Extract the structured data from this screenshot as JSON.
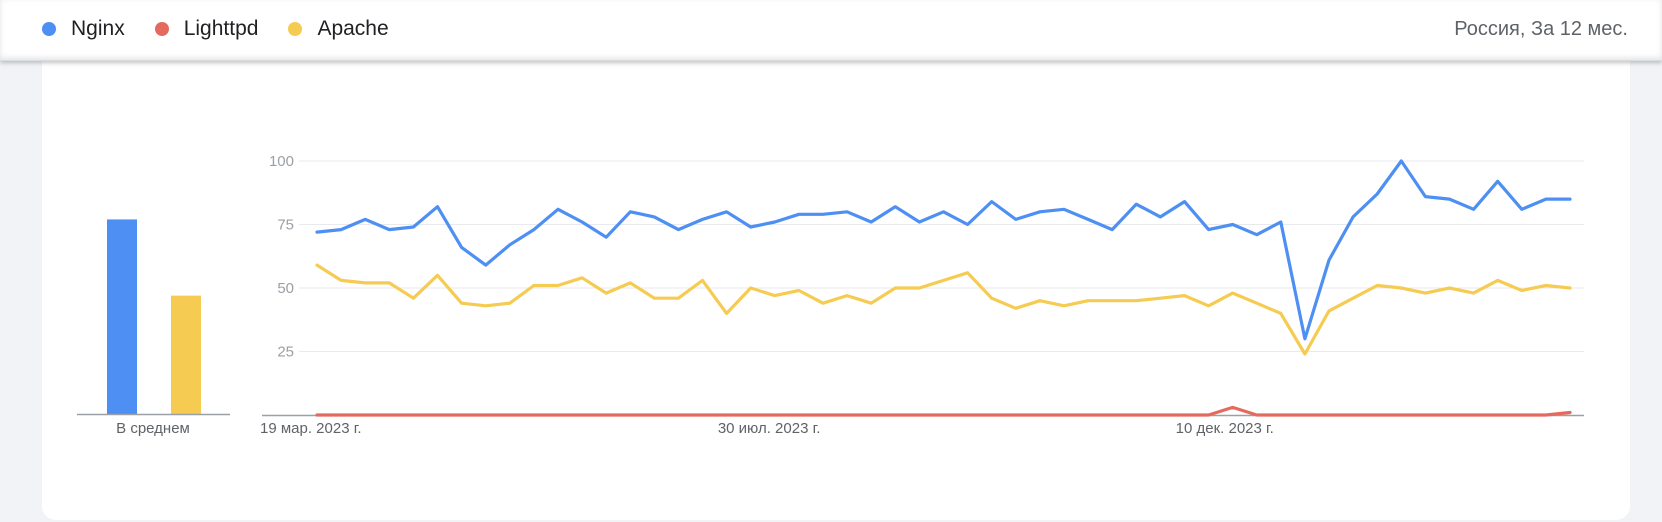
{
  "legend": {
    "items": [
      {
        "label": "Nginx",
        "color": "#4e8ff3"
      },
      {
        "label": "Lighttpd",
        "color": "#e56a5e"
      },
      {
        "label": "Apache",
        "color": "#f6cb52"
      }
    ],
    "region": "Россия, За 12 мес."
  },
  "chart_data": [
    {
      "type": "bar",
      "categories": [
        "В среднем"
      ],
      "series": [
        {
          "name": "Nginx",
          "color": "#4e8ff3",
          "values": [
            77
          ]
        },
        {
          "name": "Lighttpd",
          "color": "#e56a5e",
          "values": [
            0
          ]
        },
        {
          "name": "Apache",
          "color": "#f6cb52",
          "values": [
            47
          ]
        }
      ],
      "ylim": [
        0,
        100
      ]
    },
    {
      "type": "line",
      "x_tick_labels": [
        "19 мар. 2023 г.",
        "30 июл. 2023 г.",
        "10 дек. 2023 г."
      ],
      "x_tick_index": [
        0,
        19,
        38
      ],
      "y_ticks": [
        25,
        50,
        75,
        100
      ],
      "ylim": [
        0,
        100
      ],
      "grid": true,
      "series": [
        {
          "name": "Nginx",
          "color": "#4e8ff3",
          "values": [
            72,
            73,
            77,
            73,
            74,
            82,
            66,
            59,
            67,
            73,
            81,
            76,
            70,
            80,
            78,
            73,
            77,
            80,
            74,
            76,
            79,
            79,
            80,
            76,
            82,
            76,
            80,
            75,
            84,
            77,
            80,
            81,
            77,
            73,
            83,
            78,
            84,
            73,
            75,
            71,
            76,
            30,
            61,
            78,
            87,
            100,
            86,
            85,
            81,
            92,
            81,
            85,
            85
          ]
        },
        {
          "name": "Lighttpd",
          "color": "#e56a5e",
          "values": [
            0,
            0,
            0,
            0,
            0,
            0,
            0,
            0,
            0,
            0,
            0,
            0,
            0,
            0,
            0,
            0,
            0,
            0,
            0,
            0,
            0,
            0,
            0,
            0,
            0,
            0,
            0,
            0,
            0,
            0,
            0,
            0,
            0,
            0,
            0,
            0,
            0,
            0,
            3,
            0,
            0,
            0,
            0,
            0,
            0,
            0,
            0,
            0,
            0,
            0,
            0,
            0,
            1
          ]
        },
        {
          "name": "Apache",
          "color": "#f6cb52",
          "values": [
            59,
            53,
            52,
            52,
            46,
            55,
            44,
            43,
            44,
            51,
            51,
            54,
            48,
            52,
            46,
            46,
            53,
            40,
            50,
            47,
            49,
            44,
            47,
            44,
            50,
            50,
            53,
            56,
            46,
            42,
            45,
            43,
            45,
            45,
            45,
            46,
            47,
            43,
            48,
            44,
            40,
            24,
            41,
            46,
            51,
            50,
            48,
            50,
            48,
            53,
            49,
            51,
            50
          ]
        }
      ]
    }
  ]
}
